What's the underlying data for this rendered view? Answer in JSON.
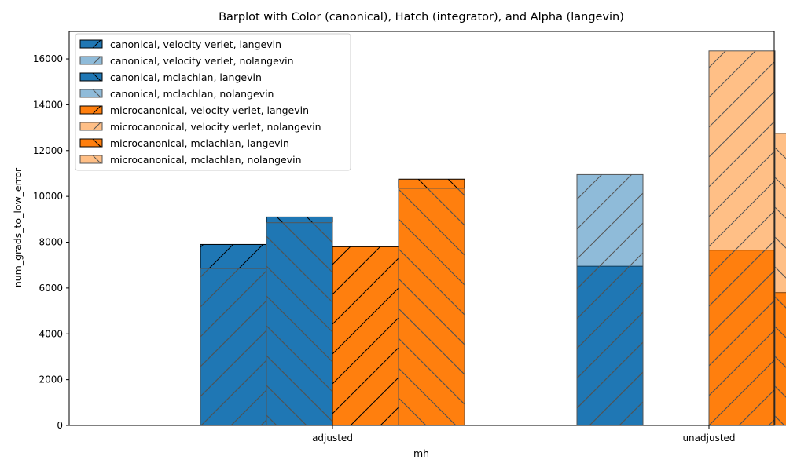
{
  "chart_data": {
    "type": "bar",
    "title": "Barplot with Color (canonical), Hatch (integrator), and Alpha (langevin)",
    "xlabel": "mh",
    "ylabel": "num_grads_to_low_error",
    "categories": [
      "adjusted",
      "unadjusted"
    ],
    "ylim": [
      0,
      17200
    ],
    "yticks": [
      0,
      2000,
      4000,
      6000,
      8000,
      10000,
      12000,
      14000,
      16000
    ],
    "grid": false,
    "legend_position": "top-left",
    "colors": {
      "canonical": "#1f77b4",
      "microcanonical": "#ff7f0e"
    },
    "series": [
      {
        "name": "canonical, velocity verlet, langevin",
        "color": "#1f77b4",
        "hatch": "/",
        "alpha": 1.0,
        "slot": 0,
        "values": [
          7900,
          6950
        ]
      },
      {
        "name": "canonical, velocity verlet, nolangevin",
        "color": "#1f77b4",
        "hatch": "/",
        "alpha": 0.5,
        "slot": 0,
        "values": [
          6850,
          10950
        ]
      },
      {
        "name": "canonical, mclachlan, langevin",
        "color": "#1f77b4",
        "hatch": "\\",
        "alpha": 1.0,
        "slot": 1,
        "values": [
          9100,
          null
        ]
      },
      {
        "name": "canonical, mclachlan, nolangevin",
        "color": "#1f77b4",
        "hatch": "\\",
        "alpha": 0.5,
        "slot": 1,
        "values": [
          8850,
          null
        ]
      },
      {
        "name": "microcanonical, velocity verlet, langevin",
        "color": "#ff7f0e",
        "hatch": "/",
        "alpha": 1.0,
        "slot": 2,
        "values": [
          7800,
          7650
        ]
      },
      {
        "name": "microcanonical, velocity verlet, nolangevin",
        "color": "#ff7f0e",
        "hatch": "/",
        "alpha": 0.5,
        "slot": 2,
        "values": [
          null,
          16350
        ]
      },
      {
        "name": "microcanonical, mclachlan, langevin",
        "color": "#ff7f0e",
        "hatch": "\\",
        "alpha": 1.0,
        "slot": 3,
        "values": [
          10750,
          5800
        ]
      },
      {
        "name": "microcanonical, mclachlan, nolangevin",
        "color": "#ff7f0e",
        "hatch": "\\",
        "alpha": 0.5,
        "slot": 3,
        "values": [
          10350,
          12750
        ]
      }
    ]
  }
}
